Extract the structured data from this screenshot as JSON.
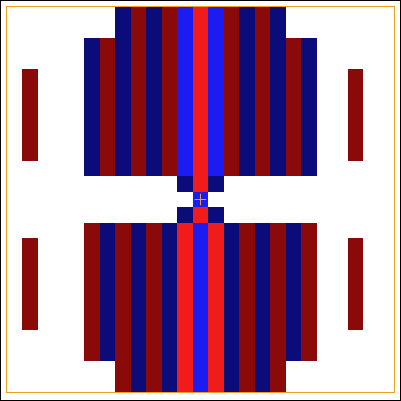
{
  "chart_data": {
    "type": "heatmap",
    "tick_labels": false,
    "xlim": [
      -0.5,
      24.5
    ],
    "ylim": [
      24.5,
      -0.5
    ],
    "zlim": [
      -2,
      2
    ],
    "colors": [
      "#0b0b7a",
      "#1c1cf0",
      "#ffffff",
      "#f01c1c",
      "#8a0a0a"
    ],
    "cells": [
      [
        0,
        0,
        0,
        0,
        0,
        0,
        0,
        -2,
        2,
        -2,
        2,
        -1,
        1,
        -1,
        2,
        -2,
        2,
        -2,
        0,
        0,
        0,
        0,
        0,
        0,
        0
      ],
      [
        0,
        0,
        0,
        0,
        0,
        0,
        0,
        -2,
        2,
        -2,
        2,
        -1,
        1,
        -1,
        2,
        -2,
        2,
        -2,
        0,
        0,
        0,
        0,
        0,
        0,
        0
      ],
      [
        0,
        0,
        0,
        0,
        0,
        -2,
        2,
        -2,
        2,
        -2,
        2,
        -1,
        1,
        -1,
        2,
        -2,
        2,
        -2,
        2,
        -2,
        0,
        0,
        0,
        0,
        0
      ],
      [
        0,
        0,
        0,
        0,
        0,
        -2,
        2,
        -2,
        2,
        -2,
        2,
        -1,
        1,
        -1,
        2,
        -2,
        2,
        -2,
        2,
        -2,
        0,
        0,
        0,
        0,
        0
      ],
      [
        0,
        2,
        0,
        0,
        0,
        -2,
        2,
        -2,
        2,
        -2,
        2,
        -1,
        1,
        -1,
        2,
        -2,
        2,
        -2,
        2,
        -2,
        0,
        0,
        2,
        0,
        0
      ],
      [
        0,
        2,
        0,
        0,
        0,
        -2,
        2,
        -2,
        2,
        -2,
        2,
        -1,
        1,
        -1,
        2,
        -2,
        2,
        -2,
        2,
        -2,
        0,
        0,
        2,
        0,
        0
      ],
      [
        0,
        2,
        0,
        0,
        0,
        -2,
        2,
        -2,
        2,
        -2,
        2,
        -1,
        1,
        -1,
        2,
        -2,
        2,
        -2,
        2,
        -2,
        0,
        0,
        2,
        0,
        0
      ],
      [
        0,
        2,
        0,
        0,
        0,
        -2,
        2,
        -2,
        2,
        -2,
        2,
        -1,
        1,
        -1,
        2,
        -2,
        2,
        -2,
        2,
        -2,
        0,
        0,
        2,
        0,
        0
      ],
      [
        0,
        2,
        0,
        0,
        0,
        -2,
        2,
        -2,
        2,
        -2,
        2,
        -1,
        1,
        -1,
        2,
        -2,
        2,
        -2,
        2,
        -2,
        0,
        0,
        2,
        0,
        0
      ],
      [
        0,
        2,
        0,
        0,
        0,
        -2,
        2,
        -2,
        2,
        -2,
        2,
        -1,
        1,
        -1,
        2,
        -2,
        2,
        -2,
        2,
        -2,
        0,
        0,
        2,
        0,
        0
      ],
      [
        0,
        0,
        0,
        0,
        0,
        -2,
        2,
        -2,
        2,
        -2,
        2,
        -1,
        1,
        -1,
        2,
        -2,
        2,
        -2,
        2,
        -2,
        0,
        0,
        0,
        0,
        0
      ],
      [
        0,
        0,
        0,
        0,
        0,
        0,
        0,
        0,
        0,
        0,
        0,
        -2,
        1,
        -2,
        0,
        0,
        0,
        0,
        0,
        0,
        0,
        0,
        0,
        0,
        0
      ],
      [
        0,
        0,
        0,
        0,
        0,
        0,
        0,
        0,
        0,
        0,
        0,
        0,
        -1,
        0,
        0,
        0,
        0,
        0,
        0,
        0,
        0,
        0,
        0,
        0,
        0
      ],
      [
        0,
        0,
        0,
        0,
        0,
        0,
        0,
        0,
        0,
        0,
        0,
        -2,
        1,
        -2,
        0,
        0,
        0,
        0,
        0,
        0,
        0,
        0,
        0,
        0,
        0
      ],
      [
        0,
        0,
        0,
        0,
        0,
        2,
        -2,
        2,
        -2,
        2,
        -2,
        1,
        -1,
        1,
        -2,
        2,
        -2,
        2,
        -2,
        2,
        0,
        0,
        0,
        0,
        0
      ],
      [
        0,
        2,
        0,
        0,
        0,
        2,
        -2,
        2,
        -2,
        2,
        -2,
        1,
        -1,
        1,
        -2,
        2,
        -2,
        2,
        -2,
        2,
        0,
        0,
        2,
        0,
        0
      ],
      [
        0,
        2,
        0,
        0,
        0,
        2,
        -2,
        2,
        -2,
        2,
        -2,
        1,
        -1,
        1,
        -2,
        2,
        -2,
        2,
        -2,
        2,
        0,
        0,
        2,
        0,
        0
      ],
      [
        0,
        2,
        0,
        0,
        0,
        2,
        -2,
        2,
        -2,
        2,
        -2,
        1,
        -1,
        1,
        -2,
        2,
        -2,
        2,
        -2,
        2,
        0,
        0,
        2,
        0,
        0
      ],
      [
        0,
        2,
        0,
        0,
        0,
        2,
        -2,
        2,
        -2,
        2,
        -2,
        1,
        -1,
        1,
        -2,
        2,
        -2,
        2,
        -2,
        2,
        0,
        0,
        2,
        0,
        0
      ],
      [
        0,
        2,
        0,
        0,
        0,
        2,
        -2,
        2,
        -2,
        2,
        -2,
        1,
        -1,
        1,
        -2,
        2,
        -2,
        2,
        -2,
        2,
        0,
        0,
        2,
        0,
        0
      ],
      [
        0,
        2,
        0,
        0,
        0,
        2,
        -2,
        2,
        -2,
        2,
        -2,
        1,
        -1,
        1,
        -2,
        2,
        -2,
        2,
        -2,
        2,
        0,
        0,
        2,
        0,
        0
      ],
      [
        0,
        0,
        0,
        0,
        0,
        2,
        -2,
        2,
        -2,
        2,
        -2,
        1,
        -1,
        1,
        -2,
        2,
        -2,
        2,
        -2,
        2,
        0,
        0,
        0,
        0,
        0
      ],
      [
        0,
        0,
        0,
        0,
        0,
        2,
        -2,
        2,
        -2,
        2,
        -2,
        1,
        -1,
        1,
        -2,
        2,
        -2,
        2,
        -2,
        2,
        0,
        0,
        0,
        0,
        0
      ],
      [
        0,
        0,
        0,
        0,
        0,
        0,
        0,
        2,
        -2,
        2,
        -2,
        1,
        -1,
        1,
        -2,
        2,
        -2,
        2,
        0,
        0,
        0,
        0,
        0,
        0,
        0
      ],
      [
        0,
        0,
        0,
        0,
        0,
        0,
        0,
        2,
        -2,
        2,
        -2,
        1,
        -1,
        1,
        -2,
        2,
        -2,
        2,
        0,
        0,
        0,
        0,
        0,
        0,
        0
      ]
    ]
  }
}
